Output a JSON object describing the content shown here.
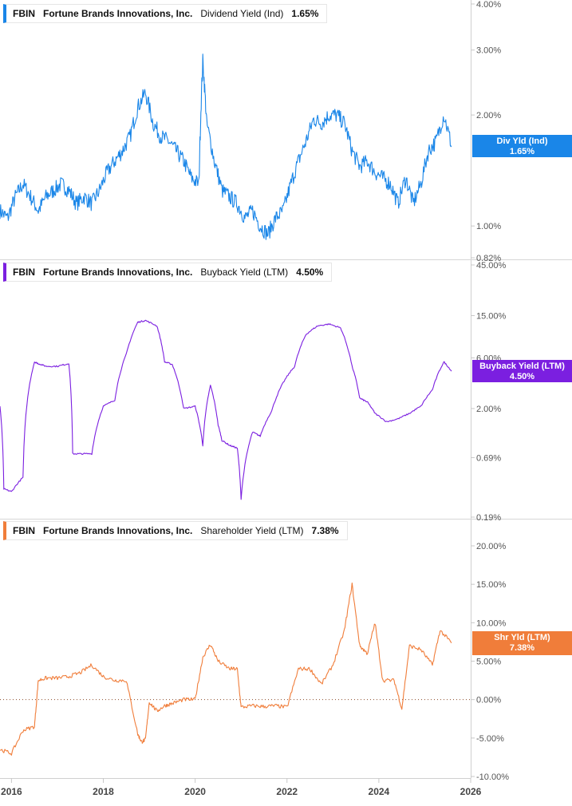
{
  "chart_data": [
    {
      "type": "line",
      "ticker": "FBIN",
      "company": "Fortune Brands Innovations, Inc.",
      "metric": "Dividend Yield (Ind)",
      "metric_value": "1.65%",
      "tag_label": "Div Yld (Ind)",
      "tag_value": "1.65%",
      "color": "#1a86e8",
      "scale": "log",
      "ylim": [
        0.82,
        4.0
      ],
      "yticks": [
        0.82,
        1.0,
        2.0,
        3.0,
        4.0
      ],
      "ytick_labels": [
        "0.82%",
        "1.00%",
        "2.00%",
        "3.00%",
        "4.00%"
      ],
      "x": [
        "2015-10",
        "2015-12",
        "2016-02",
        "2016-04",
        "2016-06",
        "2016-08",
        "2016-10",
        "2016-12",
        "2017-02",
        "2017-04",
        "2017-06",
        "2017-08",
        "2017-10",
        "2017-12",
        "2018-02",
        "2018-04",
        "2018-06",
        "2018-08",
        "2018-10",
        "2018-12",
        "2019-02",
        "2019-04",
        "2019-06",
        "2019-08",
        "2019-10",
        "2019-12",
        "2020-02",
        "2020-03",
        "2020-04",
        "2020-06",
        "2020-08",
        "2020-10",
        "2020-12",
        "2021-02",
        "2021-04",
        "2021-06",
        "2021-08",
        "2021-10",
        "2021-12",
        "2022-02",
        "2022-04",
        "2022-06",
        "2022-08",
        "2022-10",
        "2022-12",
        "2023-02",
        "2023-04",
        "2023-06",
        "2023-08",
        "2023-10",
        "2023-12",
        "2024-02",
        "2024-04",
        "2024-06",
        "2024-08",
        "2024-10",
        "2024-12",
        "2025-02",
        "2025-04",
        "2025-06",
        "2025-08"
      ],
      "values": [
        1.1,
        1.05,
        1.2,
        1.3,
        1.2,
        1.1,
        1.2,
        1.25,
        1.3,
        1.25,
        1.15,
        1.2,
        1.15,
        1.25,
        1.4,
        1.5,
        1.6,
        1.75,
        2.1,
        2.3,
        1.9,
        1.75,
        1.7,
        1.6,
        1.5,
        1.35,
        1.3,
        2.8,
        1.9,
        1.5,
        1.25,
        1.2,
        1.15,
        1.05,
        1.1,
        1.0,
        0.95,
        1.05,
        1.1,
        1.3,
        1.5,
        1.7,
        1.95,
        1.9,
        2.0,
        2.0,
        1.9,
        1.6,
        1.45,
        1.5,
        1.4,
        1.35,
        1.3,
        1.15,
        1.35,
        1.15,
        1.3,
        1.6,
        1.7,
        2.0,
        1.65
      ]
    },
    {
      "type": "line",
      "ticker": "FBIN",
      "company": "Fortune Brands Innovations, Inc.",
      "metric": "Buyback Yield (LTM)",
      "metric_value": "4.50%",
      "tag_label": "Buyback Yield (LTM)",
      "tag_value": "4.50%",
      "color": "#7b1fe0",
      "scale": "log",
      "ylim": [
        0.19,
        45.0
      ],
      "yticks": [
        0.19,
        0.69,
        2.0,
        6.0,
        15.0,
        45.0
      ],
      "ytick_labels": [
        "0.19%",
        "0.69%",
        "2.00%",
        "6.00%",
        "15.00%",
        "45.00%"
      ],
      "x": [
        "2015-10",
        "2015-11",
        "2016-01",
        "2016-04",
        "2016-07",
        "2016-08",
        "2016-10",
        "2017-01",
        "2017-04",
        "2017-05",
        "2017-07",
        "2017-10",
        "2018-01",
        "2018-04",
        "2018-07",
        "2018-10",
        "2018-12",
        "2019-03",
        "2019-05",
        "2019-07",
        "2019-10",
        "2020-01",
        "2020-03",
        "2020-05",
        "2020-07",
        "2020-08",
        "2020-10",
        "2020-12",
        "2021-01",
        "2021-04",
        "2021-06",
        "2021-09",
        "2021-12",
        "2022-03",
        "2022-06",
        "2022-09",
        "2022-12",
        "2023-03",
        "2023-06",
        "2023-08",
        "2023-10",
        "2023-12",
        "2024-03",
        "2024-06",
        "2024-09",
        "2024-12",
        "2025-03",
        "2025-06",
        "2025-08"
      ],
      "values": [
        2.1,
        0.35,
        0.33,
        0.45,
        5.5,
        5.3,
        5.0,
        5.0,
        5.3,
        0.75,
        0.75,
        0.75,
        2.1,
        2.4,
        6.5,
        13.0,
        13.5,
        12.0,
        5.5,
        5.2,
        2.0,
        2.1,
        0.9,
        3.3,
        1.4,
        1.0,
        0.9,
        0.85,
        0.28,
        1.2,
        1.1,
        1.9,
        3.5,
        5.0,
        10.0,
        12.0,
        12.5,
        11.5,
        5.0,
        2.5,
        2.3,
        1.8,
        1.5,
        1.6,
        1.8,
        2.1,
        3.0,
        5.5,
        4.5
      ]
    },
    {
      "type": "line",
      "ticker": "FBIN",
      "company": "Fortune Brands Innovations, Inc.",
      "metric": "Shareholder Yield (LTM)",
      "metric_value": "7.38%",
      "tag_label": "Shr Yld (LTM)",
      "tag_value": "7.38%",
      "color": "#f07d3a",
      "scale": "linear",
      "ylim": [
        -10.0,
        20.0
      ],
      "yticks": [
        -10,
        -5,
        0,
        5,
        10,
        15,
        20
      ],
      "ytick_labels": [
        "-10.00%",
        "-5.00%",
        "0.00%",
        "5.00%",
        "10.00%",
        "15.00%",
        "20.00%"
      ],
      "zero_line": true,
      "x": [
        "2015-10",
        "2016-01",
        "2016-04",
        "2016-07",
        "2016-08",
        "2016-10",
        "2017-01",
        "2017-04",
        "2017-07",
        "2017-10",
        "2018-01",
        "2018-04",
        "2018-07",
        "2018-10",
        "2018-11",
        "2018-12",
        "2019-01",
        "2019-03",
        "2019-05",
        "2019-07",
        "2019-10",
        "2020-01",
        "2020-03",
        "2020-05",
        "2020-07",
        "2020-10",
        "2020-12",
        "2021-01",
        "2021-04",
        "2021-07",
        "2021-10",
        "2022-01",
        "2022-04",
        "2022-07",
        "2022-10",
        "2023-01",
        "2023-04",
        "2023-06",
        "2023-08",
        "2023-10",
        "2023-12",
        "2024-02",
        "2024-05",
        "2024-07",
        "2024-09",
        "2024-12",
        "2025-03",
        "2025-05",
        "2025-08"
      ],
      "values": [
        -6.5,
        -7.0,
        -4.0,
        -3.5,
        2.5,
        2.8,
        2.8,
        3.0,
        3.5,
        4.5,
        3.0,
        2.5,
        2.5,
        -4.5,
        -5.5,
        -5.2,
        -0.3,
        -1.5,
        -0.8,
        -0.5,
        0.0,
        0.0,
        5.5,
        7.2,
        5.0,
        4.0,
        4.0,
        -1.0,
        -0.8,
        -0.9,
        -0.8,
        -1.0,
        4.0,
        4.0,
        2.0,
        4.5,
        9.0,
        15.0,
        7.0,
        6.0,
        10.0,
        2.5,
        2.5,
        -1.2,
        7.0,
        6.5,
        4.5,
        9.0,
        7.38
      ]
    }
  ],
  "x_axis": {
    "type": "date",
    "range": [
      "2015-10",
      "2026-01"
    ],
    "tick_labels": [
      "2016",
      "2018",
      "2020",
      "2022",
      "2024",
      "2026"
    ]
  }
}
